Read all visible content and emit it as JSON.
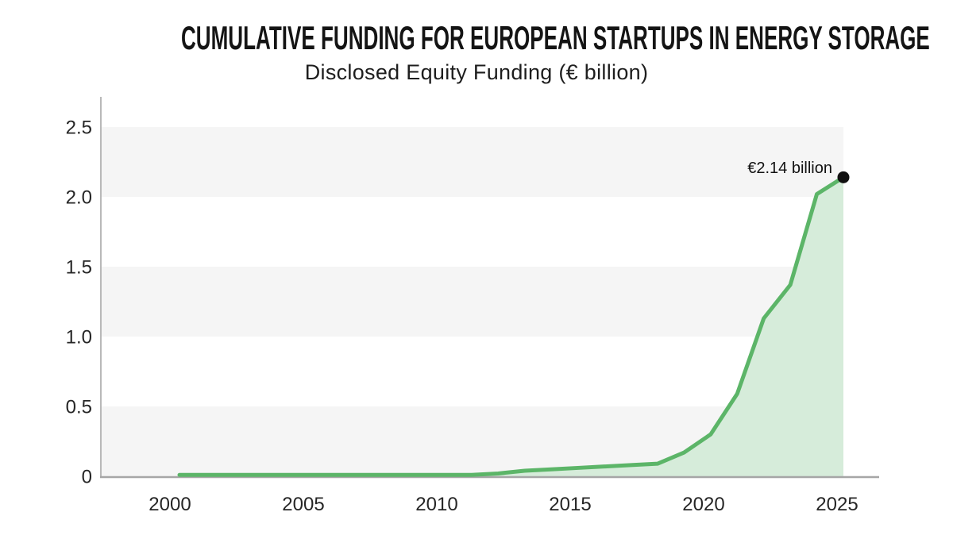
{
  "chart_data": {
    "type": "area",
    "title": "CUMULATIVE FUNDING FOR EUROPEAN STARTUPS IN ENERGY STORAGE",
    "subtitle": "Disclosed Equity Funding (€ billion)",
    "xlabel": "",
    "ylabel": "Disclosed Equity Funding (€ billion)",
    "x": [
      2000,
      2001,
      2002,
      2003,
      2004,
      2005,
      2006,
      2007,
      2008,
      2009,
      2010,
      2011,
      2012,
      2013,
      2014,
      2015,
      2016,
      2017,
      2018,
      2019,
      2020,
      2021,
      2022,
      2023,
      2024,
      2025
    ],
    "values": [
      0.01,
      0.01,
      0.01,
      0.01,
      0.01,
      0.01,
      0.01,
      0.01,
      0.01,
      0.01,
      0.01,
      0.01,
      0.02,
      0.04,
      0.05,
      0.06,
      0.07,
      0.08,
      0.09,
      0.17,
      0.3,
      0.59,
      1.13,
      1.37,
      2.02,
      2.14
    ],
    "x_ticks": [
      2000,
      2005,
      2010,
      2015,
      2020,
      2025
    ],
    "y_ticks": [
      {
        "value": 0,
        "label": "0"
      },
      {
        "value": 0.5,
        "label": "0.5"
      },
      {
        "value": 1,
        "label": "1.0"
      },
      {
        "value": 1.5,
        "label": "1.5"
      },
      {
        "value": 2,
        "label": "2.0"
      },
      {
        "value": 2.5,
        "label": "2.5"
      }
    ],
    "ylim": [
      0,
      2.7
    ],
    "xlim": [
      2000,
      2025
    ],
    "grid": "alternating horizontal bands",
    "bands": [
      [
        0,
        0.5
      ],
      [
        1,
        1.5
      ],
      [
        2,
        2.5
      ]
    ],
    "legend": false,
    "annotation": {
      "text": "€2.14 billion",
      "x": 2025,
      "y": 2.14
    },
    "colors": {
      "line": "#5CB568",
      "fill": "#D6ECDA",
      "band": "#F5F5F5",
      "axis": "#A6A6A6",
      "dot": "#111111",
      "tick_text": "#262626"
    }
  }
}
